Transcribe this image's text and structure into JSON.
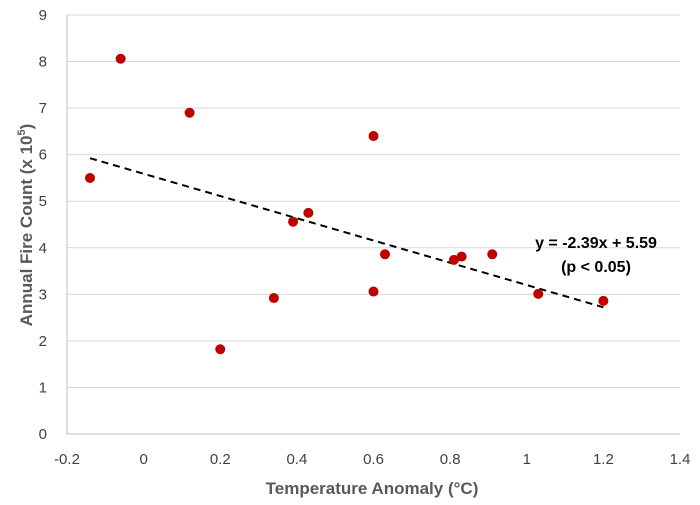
{
  "chart_data": {
    "type": "scatter",
    "title": "",
    "xlabel": "Temperature Anomaly (°C)",
    "ylabel_main": "Annual Fire Count (x 10",
    "ylabel_sup": "5",
    "ylabel_close": ")",
    "xlim": [
      -0.2,
      1.4
    ],
    "ylim": [
      0,
      9
    ],
    "x_ticks": [
      -0.2,
      0,
      0.2,
      0.4,
      0.6,
      0.8,
      1,
      1.2,
      1.4
    ],
    "x_tick_labels": [
      "-0.2",
      "0",
      "0.2",
      "0.4",
      "0.6",
      "0.8",
      "1",
      "1.2",
      "1.4"
    ],
    "y_ticks": [
      0,
      1,
      2,
      3,
      4,
      5,
      6,
      7,
      8,
      9
    ],
    "y_tick_labels": [
      "0",
      "1",
      "2",
      "3",
      "4",
      "5",
      "6",
      "7",
      "8",
      "9"
    ],
    "grid": "horizontal",
    "marker_color": "#c00000",
    "points": [
      {
        "x": -0.14,
        "y": 5.5
      },
      {
        "x": -0.06,
        "y": 8.06
      },
      {
        "x": 0.12,
        "y": 6.9
      },
      {
        "x": 0.2,
        "y": 1.82
      },
      {
        "x": 0.34,
        "y": 2.92
      },
      {
        "x": 0.39,
        "y": 4.56
      },
      {
        "x": 0.43,
        "y": 4.75
      },
      {
        "x": 0.6,
        "y": 6.4
      },
      {
        "x": 0.6,
        "y": 3.06
      },
      {
        "x": 0.63,
        "y": 3.86
      },
      {
        "x": 0.81,
        "y": 3.74
      },
      {
        "x": 0.83,
        "y": 3.81
      },
      {
        "x": 0.91,
        "y": 3.86
      },
      {
        "x": 1.03,
        "y": 3.01
      },
      {
        "x": 1.2,
        "y": 2.86
      }
    ],
    "trendline": {
      "slope": -2.39,
      "intercept": 5.59,
      "x_range": [
        -0.14,
        1.2
      ],
      "color": "#000000"
    },
    "annotations": [
      "y = -2.39x + 5.59",
      "(p < 0.05)"
    ]
  }
}
